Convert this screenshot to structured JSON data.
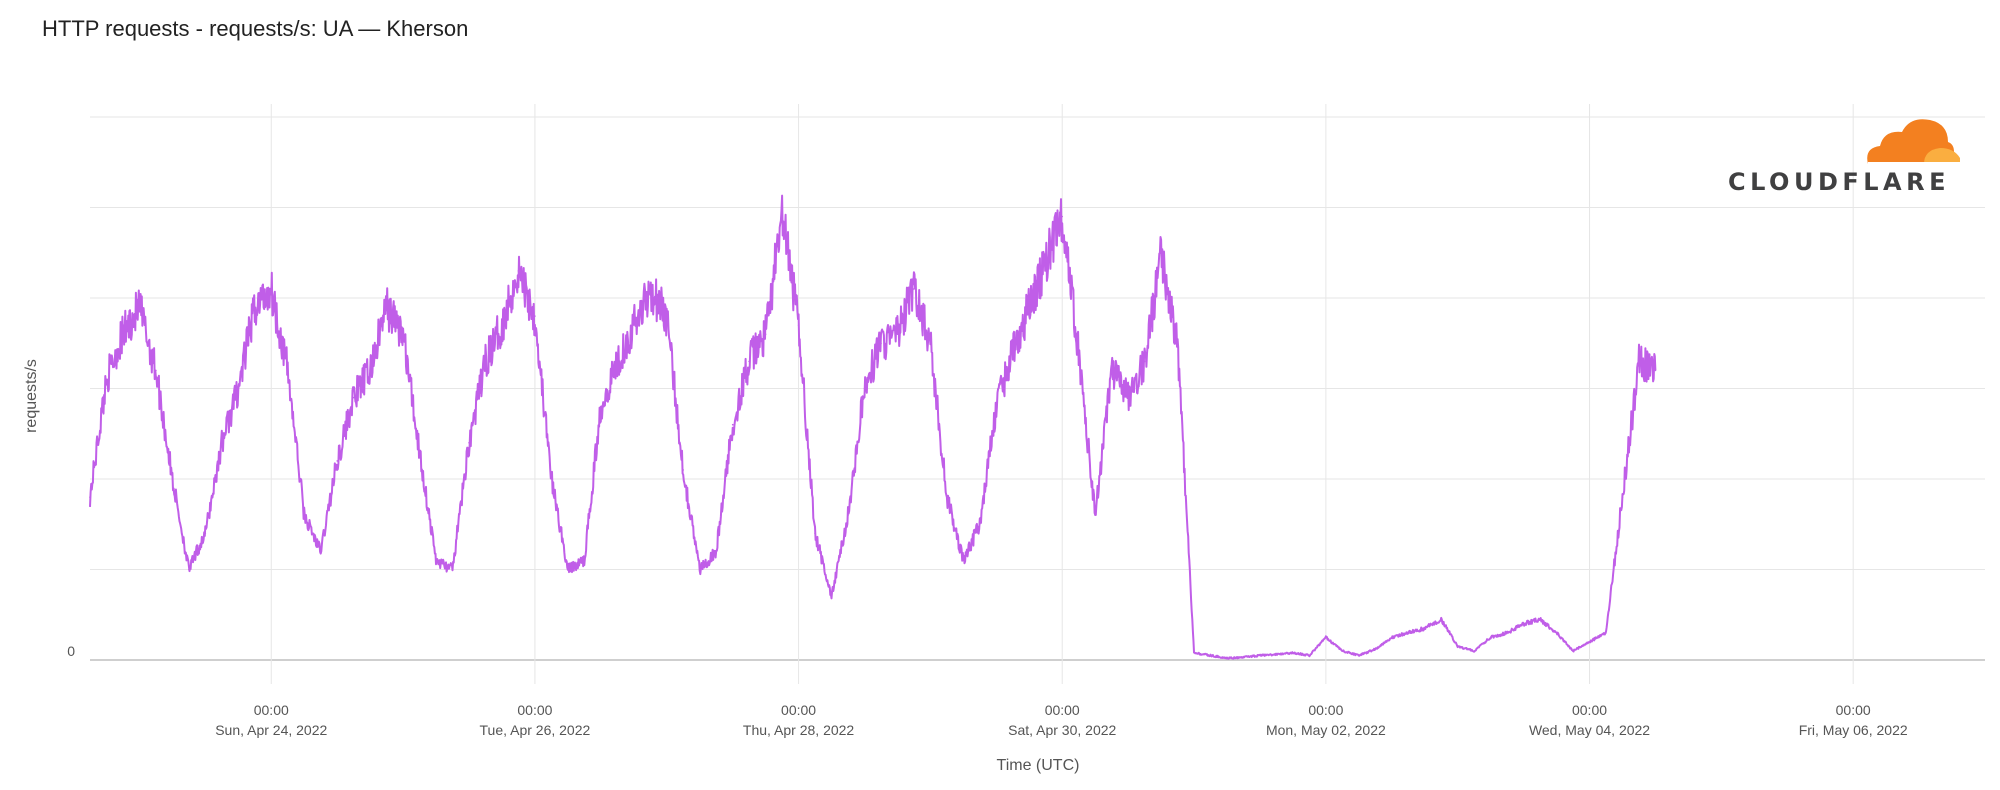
{
  "title": "HTTP requests - requests/s: UA — Kherson",
  "logo": {
    "text": "CLOUDFLARE",
    "icon": "cloud-logo-icon",
    "colors": [
      "#f38020",
      "#faae40"
    ]
  },
  "chart_data": {
    "type": "line",
    "title": "HTTP requests - requests/s: UA — Kherson",
    "xlabel": "Time (UTC)",
    "ylabel": "requests/s",
    "y_tick_labels": [
      "0"
    ],
    "ylim": [
      0,
      6
    ],
    "grid": true,
    "legend": "none",
    "line_color": "#c05ee8",
    "x_ticks": [
      {
        "time": "00:00",
        "date": "Sun, Apr 24, 2022"
      },
      {
        "time": "00:00",
        "date": "Tue, Apr 26, 2022"
      },
      {
        "time": "00:00",
        "date": "Thu, Apr 28, 2022"
      },
      {
        "time": "00:00",
        "date": "Sat, Apr 30, 2022"
      },
      {
        "time": "00:00",
        "date": "Mon, May 02, 2022"
      },
      {
        "time": "00:00",
        "date": "Wed, May 04, 2022"
      },
      {
        "time": "00:00",
        "date": "Fri, May 06, 2022"
      }
    ],
    "xlim": [
      "Apr 22, 2022 15:00",
      "May 07, 2022 00:00"
    ],
    "series": [
      {
        "x": [
          "Apr 22 15:00",
          "Apr 22 18:00",
          "Apr 22 21:00",
          "Apr 23 00:00",
          "Apr 23 03:00",
          "Apr 23 06:00",
          "Apr 23 09:00",
          "Apr 23 12:00",
          "Apr 23 15:00",
          "Apr 23 18:00",
          "Apr 23 21:00",
          "Apr 24 00:00",
          "Apr 24 03:00",
          "Apr 24 06:00",
          "Apr 24 09:00",
          "Apr 24 12:00",
          "Apr 24 15:00",
          "Apr 24 18:00",
          "Apr 24 21:00",
          "Apr 25 00:00",
          "Apr 25 03:00",
          "Apr 25 06:00",
          "Apr 25 09:00",
          "Apr 25 12:00",
          "Apr 25 15:00",
          "Apr 25 18:00",
          "Apr 25 21:00",
          "Apr 26 00:00",
          "Apr 26 03:00",
          "Apr 26 06:00",
          "Apr 26 09:00",
          "Apr 26 12:00",
          "Apr 26 15:00",
          "Apr 26 18:00",
          "Apr 26 21:00",
          "Apr 27 00:00",
          "Apr 27 03:00",
          "Apr 27 06:00",
          "Apr 27 09:00",
          "Apr 27 12:00",
          "Apr 27 15:00",
          "Apr 27 18:00",
          "Apr 27 21:00",
          "Apr 28 00:00",
          "Apr 28 03:00",
          "Apr 28 06:00",
          "Apr 28 09:00",
          "Apr 28 12:00",
          "Apr 28 15:00",
          "Apr 28 18:00",
          "Apr 28 21:00",
          "Apr 29 00:00",
          "Apr 29 03:00",
          "Apr 29 06:00",
          "Apr 29 09:00",
          "Apr 29 12:00",
          "Apr 29 15:00",
          "Apr 29 18:00",
          "Apr 29 21:00",
          "Apr 30 00:00",
          "Apr 30 03:00",
          "Apr 30 06:00",
          "Apr 30 09:00",
          "Apr 30 12:00",
          "Apr 30 15:00",
          "Apr 30 18:00",
          "Apr 30 21:00",
          "May 01 00:00",
          "May 01 03:00",
          "May 01 06:00",
          "May 01 09:00",
          "May 01 12:00",
          "May 01 15:00",
          "May 01 18:00",
          "May 01 21:00",
          "May 02 00:00",
          "May 02 03:00",
          "May 02 06:00",
          "May 02 09:00",
          "May 02 12:00",
          "May 02 15:00",
          "May 02 18:00",
          "May 02 21:00",
          "May 03 00:00",
          "May 03 03:00",
          "May 03 06:00",
          "May 03 09:00",
          "May 03 12:00",
          "May 03 15:00",
          "May 03 18:00",
          "May 03 21:00",
          "May 04 00:00",
          "May 04 03:00",
          "May 04 06:00",
          "May 04 09:00",
          "May 04 12:00"
        ],
        "y": [
          1.8,
          3.1,
          3.6,
          3.9,
          3.2,
          2.0,
          1.0,
          1.4,
          2.4,
          3.0,
          3.9,
          4.1,
          3.2,
          1.6,
          1.2,
          2.2,
          2.9,
          3.2,
          3.9,
          3.6,
          2.3,
          1.1,
          1.0,
          2.4,
          3.3,
          3.7,
          4.3,
          3.8,
          2.0,
          1.0,
          1.1,
          2.8,
          3.3,
          3.7,
          4.1,
          3.8,
          2.1,
          1.0,
          1.2,
          2.6,
          3.3,
          3.6,
          4.9,
          3.7,
          1.4,
          0.7,
          1.6,
          3.0,
          3.5,
          3.6,
          4.1,
          3.5,
          1.8,
          1.1,
          1.5,
          2.8,
          3.4,
          3.9,
          4.4,
          4.9,
          3.4,
          1.6,
          3.2,
          2.9,
          3.3,
          4.5,
          3.5,
          0.08,
          0.05,
          0.02,
          0.03,
          0.05,
          0.06,
          0.08,
          0.05,
          0.25,
          0.1,
          0.05,
          0.12,
          0.25,
          0.3,
          0.35,
          0.45,
          0.15,
          0.1,
          0.25,
          0.3,
          0.4,
          0.45,
          0.3,
          0.1,
          0.2,
          0.3,
          1.8,
          3.3,
          3.2
        ]
      }
    ]
  }
}
